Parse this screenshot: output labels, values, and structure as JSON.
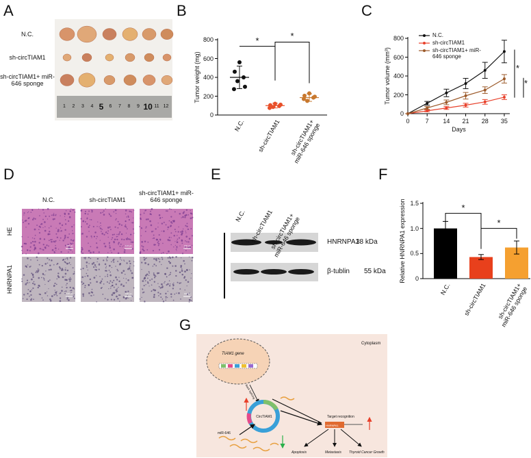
{
  "panel_labels": [
    "A",
    "B",
    "C",
    "D",
    "E",
    "F",
    "G"
  ],
  "panel_a": {
    "groups": [
      "N.C.",
      "sh-circTIAM1",
      "sh-circTIAM1+ miR-646 sponge"
    ],
    "ruler": [
      1,
      2,
      3,
      4,
      5,
      6,
      7,
      8,
      9,
      10,
      11,
      12
    ]
  },
  "chart_data": [
    {
      "type": "dot",
      "ylabel": "Tumor weight (mg)",
      "categories": [
        "N.C.",
        "sh-circTIAM1",
        "sh-circTIAM1+ miR-646 sponge"
      ],
      "points": [
        [
          560,
          460,
          400,
          360,
          300,
          275
        ],
        [
          120,
          105,
          95,
          85,
          110,
          75
        ],
        [
          230,
          205,
          185,
          150,
          195,
          170
        ]
      ],
      "values": [
        400,
        100,
        185
      ],
      "errors": [
        120,
        25,
        40
      ],
      "colors": [
        "#111111",
        "#e8502a",
        "#c8782e"
      ],
      "ylim": [
        0,
        800
      ],
      "yticks": [
        0,
        200,
        400,
        600,
        800
      ],
      "annotations": [
        "*",
        "*"
      ]
    },
    {
      "type": "line",
      "xlabel": "Days",
      "ylabel": "Tumor volume (mm³)",
      "x": [
        0,
        7,
        14,
        21,
        28,
        35
      ],
      "xlim": [
        0,
        37
      ],
      "xticks": [
        0,
        7,
        14,
        21,
        28,
        35
      ],
      "ylim": [
        0,
        800
      ],
      "yticks": [
        0,
        200,
        400,
        600,
        800
      ],
      "legend": "upper left",
      "series": [
        {
          "name": "N.C.",
          "color": "#111111",
          "values": [
            0,
            110,
            220,
            320,
            460,
            660
          ],
          "errors": [
            0,
            20,
            40,
            55,
            85,
            120
          ]
        },
        {
          "name": "sh-circTIAM1",
          "color": "#e8402a",
          "values": [
            0,
            30,
            60,
            90,
            125,
            175
          ],
          "errors": [
            0,
            10,
            15,
            20,
            25,
            25
          ]
        },
        {
          "name": "sh-circTIAM1+ miR-646 sponge",
          "color": "#9c5a2a",
          "values": [
            0,
            60,
            120,
            190,
            250,
            370
          ],
          "errors": [
            0,
            15,
            25,
            35,
            35,
            45
          ]
        }
      ],
      "annotations": [
        "*",
        "*"
      ]
    },
    {
      "type": "bar",
      "ylabel": "Relative HNRNPA1 expression",
      "categories": [
        "N.C.",
        "sh-circTIAM1",
        "sh-circTIAM1+ miR-646 sponge"
      ],
      "values": [
        1.0,
        0.43,
        0.62
      ],
      "errors": [
        0.14,
        0.05,
        0.13
      ],
      "colors": [
        "#000000",
        "#e8401c",
        "#f5a030"
      ],
      "ylim": [
        0,
        1.5
      ],
      "yticks": [
        0,
        0.5,
        {
          "value": 1,
          "label": "1.0"
        },
        1.5
      ],
      "annotations": [
        "*",
        "*"
      ]
    }
  ],
  "panel_d": {
    "columns": [
      "N.C.",
      "sh-circTIAM1",
      "sh-circTIAM1+ miR-646 sponge"
    ],
    "rows": [
      "HE",
      "HNRNPA1"
    ],
    "scale_bar": "100 μm"
  },
  "panel_e": {
    "lanes": [
      "N.C.",
      "sh-circTIAM1",
      "sh-circTIAM1+ miR-646 sponge"
    ],
    "bands": [
      {
        "name": "HNRNPA1",
        "size": "38 kDa"
      },
      {
        "name": "β-tublin",
        "size": "55 kDa"
      }
    ]
  },
  "panel_g": {
    "compartment": "Cytoplasm",
    "gene": "TIAM1 gene",
    "splicing": "Back Splicing",
    "circ": "CircTIAM1",
    "mirna": "miR-646",
    "recognition": "Target recognition",
    "target": "HNRNPA1",
    "outcomes": [
      "Apoptosis",
      "Metastasis",
      "Thyroid Cancer Growth"
    ]
  }
}
